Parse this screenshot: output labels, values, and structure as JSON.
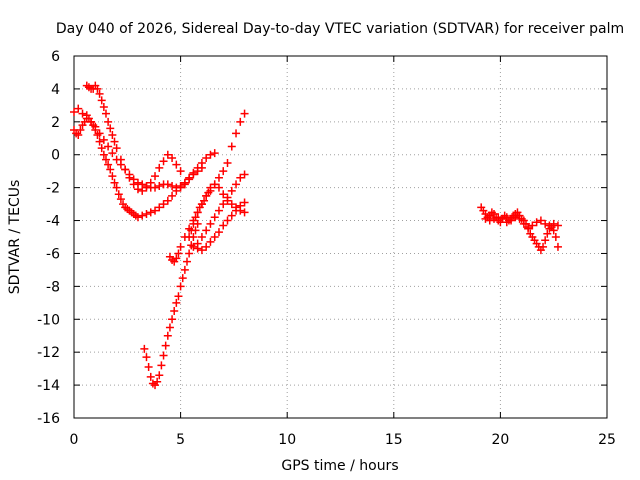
{
  "chart_data": {
    "type": "scatter",
    "title": "Day 040 of 2026, Sidereal Day-to-day VTEC variation (SDTVAR) for receiver palm",
    "xlabel": "GPS time / hours",
    "ylabel": "SDTVAR / TECUs",
    "xlim": [
      0,
      25
    ],
    "ylim": [
      -16,
      6
    ],
    "x_ticks": [
      0,
      5,
      10,
      15,
      20,
      25
    ],
    "y_ticks": [
      6,
      4,
      2,
      0,
      -2,
      -4,
      -6,
      -8,
      -10,
      -12,
      -14,
      -16
    ],
    "grid": true,
    "marker": "plus",
    "color": "#ff0000",
    "series": [
      {
        "name": "arc-1",
        "x": [
          0.0,
          0.1,
          0.2,
          0.3,
          0.4,
          0.5,
          0.6,
          0.7,
          0.8,
          0.9,
          1.0,
          1.1,
          1.2,
          1.3,
          1.4,
          1.5,
          1.6,
          1.7,
          1.8,
          1.9,
          2.0,
          2.1,
          2.2,
          2.3,
          2.4,
          2.5,
          2.6,
          2.7,
          2.8,
          2.9,
          3.0,
          3.2,
          3.4,
          3.6,
          3.8,
          4.0,
          4.2,
          4.4,
          4.6,
          4.8,
          5.0,
          5.2,
          5.4,
          5.6,
          5.8,
          6.0
        ],
        "y": [
          1.5,
          1.3,
          1.2,
          1.5,
          1.8,
          2.0,
          2.4,
          2.2,
          2.0,
          1.8,
          1.5,
          1.2,
          0.8,
          0.4,
          0.0,
          -0.3,
          -0.6,
          -0.9,
          -1.3,
          -1.7,
          -2.0,
          -2.4,
          -2.7,
          -3.0,
          -3.2,
          -3.3,
          -3.4,
          -3.5,
          -3.6,
          -3.7,
          -3.8,
          -3.7,
          -3.6,
          -3.5,
          -3.4,
          -3.2,
          -3.0,
          -2.8,
          -2.5,
          -2.2,
          -2.0,
          -1.8,
          -1.5,
          -1.2,
          -1.0,
          -0.8
        ]
      },
      {
        "name": "arc-2",
        "x": [
          0.0,
          0.2,
          0.4,
          0.6,
          0.8,
          1.0,
          1.2,
          1.4,
          1.6,
          1.8,
          2.0,
          2.2,
          2.4,
          2.6,
          2.8,
          3.0,
          3.2,
          3.4,
          3.6,
          3.8,
          4.0,
          4.2,
          4.4,
          4.6,
          4.8,
          5.0,
          5.2,
          5.4,
          5.6,
          5.8,
          6.0,
          6.2,
          6.4,
          6.6
        ],
        "y": [
          2.6,
          2.8,
          2.5,
          2.2,
          2.0,
          1.7,
          1.3,
          0.9,
          0.5,
          0.1,
          -0.3,
          -0.6,
          -0.9,
          -1.2,
          -1.5,
          -1.7,
          -1.8,
          -1.9,
          -2.0,
          -2.0,
          -1.9,
          -1.8,
          -1.8,
          -1.9,
          -2.0,
          -1.9,
          -1.7,
          -1.4,
          -1.1,
          -0.8,
          -0.5,
          -0.2,
          0.0,
          0.1
        ]
      },
      {
        "name": "arc-3",
        "x": [
          0.6,
          0.7,
          0.8,
          0.9,
          1.0,
          1.1,
          1.2,
          1.3,
          1.4,
          1.5,
          1.6,
          1.7,
          1.8,
          1.9,
          2.0,
          2.2,
          2.4,
          2.6,
          2.8,
          3.0,
          3.2,
          3.4,
          3.6,
          3.8,
          4.0,
          4.2,
          4.4,
          4.6,
          4.8,
          5.0
        ],
        "y": [
          4.2,
          4.1,
          4.0,
          4.0,
          4.2,
          4.0,
          3.7,
          3.3,
          2.9,
          2.5,
          2.0,
          1.6,
          1.2,
          0.8,
          0.4,
          -0.3,
          -0.9,
          -1.4,
          -1.8,
          -2.1,
          -2.2,
          -2.0,
          -1.7,
          -1.3,
          -0.8,
          -0.4,
          0.0,
          -0.2,
          -0.6,
          -1.0
        ]
      },
      {
        "name": "arc-4",
        "x": [
          3.3,
          3.4,
          3.5,
          3.6,
          3.7,
          3.8,
          3.9,
          4.0,
          4.1,
          4.2,
          4.3,
          4.4,
          4.5,
          4.6,
          4.7,
          4.8,
          4.9,
          5.0,
          5.1,
          5.2,
          5.3,
          5.4,
          5.5,
          5.6,
          5.7,
          5.8
        ],
        "y": [
          -11.8,
          -12.3,
          -12.9,
          -13.5,
          -13.9,
          -14.0,
          -13.8,
          -13.4,
          -12.8,
          -12.2,
          -11.6,
          -11.0,
          -10.5,
          -10.0,
          -9.5,
          -9.0,
          -8.6,
          -8.0,
          -7.5,
          -7.0,
          -6.5,
          -6.0,
          -5.5,
          -5.0,
          -4.6,
          -4.2
        ]
      },
      {
        "name": "arc-5",
        "x": [
          4.5,
          4.6,
          4.7,
          4.8,
          4.9,
          5.0,
          5.2,
          5.4,
          5.6,
          5.8,
          6.0,
          6.2,
          6.4,
          6.6,
          6.8,
          7.0,
          7.2,
          7.4,
          7.6,
          7.8,
          8.0
        ],
        "y": [
          -6.2,
          -6.4,
          -6.5,
          -6.3,
          -6.0,
          -5.6,
          -5.0,
          -4.5,
          -4.0,
          -3.5,
          -3.0,
          -2.5,
          -2.2,
          -1.8,
          -1.4,
          -1.0,
          -0.5,
          0.5,
          1.3,
          2.0,
          2.5
        ]
      },
      {
        "name": "arc-6",
        "x": [
          5.4,
          5.5,
          5.6,
          5.7,
          5.8,
          5.9,
          6.0,
          6.1,
          6.2,
          6.3,
          6.4,
          6.6,
          6.8,
          7.0,
          7.2,
          7.4,
          7.6,
          7.8,
          8.0
        ],
        "y": [
          -5.0,
          -4.6,
          -4.2,
          -3.8,
          -3.5,
          -3.2,
          -3.0,
          -2.8,
          -2.5,
          -2.3,
          -2.0,
          -1.8,
          -2.0,
          -2.4,
          -2.8,
          -3.0,
          -3.2,
          -3.4,
          -3.5
        ]
      },
      {
        "name": "arc-7",
        "x": [
          5.5,
          5.6,
          5.8,
          6.0,
          6.2,
          6.4,
          6.6,
          6.8,
          7.0,
          7.2,
          7.4,
          7.6,
          7.8,
          8.0
        ],
        "y": [
          -5.5,
          -5.6,
          -5.4,
          -5.0,
          -4.6,
          -4.2,
          -3.8,
          -3.4,
          -3.0,
          -2.6,
          -2.2,
          -1.8,
          -1.4,
          -1.2
        ]
      },
      {
        "name": "arc-8",
        "x": [
          5.8,
          6.0,
          6.2,
          6.4,
          6.6,
          6.8,
          7.0,
          7.2,
          7.4,
          7.6,
          7.8,
          8.0
        ],
        "y": [
          -5.7,
          -5.8,
          -5.6,
          -5.3,
          -5.0,
          -4.7,
          -4.3,
          -4.0,
          -3.7,
          -3.4,
          -3.1,
          -2.9
        ]
      },
      {
        "name": "arc-9",
        "x": [
          19.1,
          19.2,
          19.3,
          19.4,
          19.5,
          19.6,
          19.7,
          19.8,
          19.9,
          20.0,
          20.1,
          20.2,
          20.3,
          20.4,
          20.5,
          20.6,
          20.7,
          20.8,
          20.9,
          21.0,
          21.1,
          21.2,
          21.3,
          21.4,
          21.5,
          21.6,
          21.7,
          21.8,
          21.9,
          22.0,
          22.1,
          22.2,
          22.3,
          22.4,
          22.5,
          22.6,
          22.7
        ],
        "y": [
          -3.2,
          -3.4,
          -3.6,
          -3.8,
          -3.7,
          -3.5,
          -3.6,
          -3.8,
          -4.0,
          -4.1,
          -3.9,
          -3.7,
          -3.8,
          -4.0,
          -3.9,
          -3.7,
          -3.6,
          -3.5,
          -3.7,
          -3.9,
          -4.0,
          -4.2,
          -4.5,
          -4.8,
          -5.0,
          -5.2,
          -5.4,
          -5.6,
          -5.8,
          -5.6,
          -5.2,
          -4.8,
          -4.5,
          -4.4,
          -4.6,
          -5.0,
          -5.6
        ]
      },
      {
        "name": "arc-10",
        "x": [
          19.3,
          19.5,
          19.7,
          19.9,
          20.1,
          20.3,
          20.5,
          20.7,
          20.9,
          21.1,
          21.3,
          21.5,
          21.7,
          21.9,
          22.1,
          22.3,
          22.5,
          22.7
        ],
        "y": [
          -3.9,
          -4.0,
          -3.9,
          -3.8,
          -3.9,
          -4.1,
          -4.0,
          -3.8,
          -3.9,
          -4.2,
          -4.4,
          -4.3,
          -4.1,
          -4.0,
          -4.2,
          -4.3,
          -4.2,
          -4.3
        ]
      }
    ]
  }
}
